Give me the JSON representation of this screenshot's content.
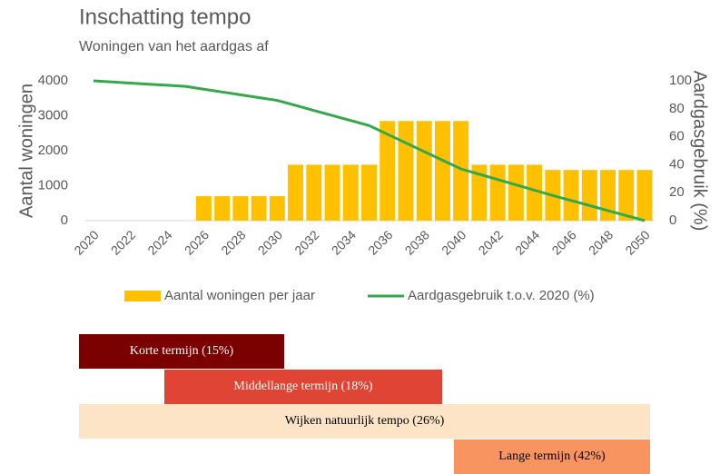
{
  "chart_data": {
    "type": "bar",
    "title": "Inschatting tempo",
    "subtitle": "Woningen van het aardgas af",
    "ylabel": "Aantal woningen",
    "y2label": "Aardgasgebruik (%)",
    "categories": [
      "2020",
      null,
      "2022",
      null,
      "2024",
      null,
      "2026",
      null,
      "2028",
      null,
      "2030",
      null,
      "2032",
      null,
      "2034",
      null,
      "2036",
      null,
      "2038",
      null,
      "2040",
      null,
      "2042",
      null,
      "2044",
      null,
      "2046",
      null,
      "2048",
      null,
      "2050"
    ],
    "series": [
      {
        "name": "Aantal woningen per jaar",
        "type": "bar",
        "color": "#ffc000",
        "values": [
          0,
          0,
          0,
          0,
          0,
          0,
          700,
          700,
          700,
          700,
          700,
          1600,
          1600,
          1600,
          1600,
          1600,
          2850,
          2850,
          2850,
          2850,
          2850,
          1600,
          1600,
          1600,
          1600,
          1450,
          1450,
          1450,
          1450,
          1450,
          1450
        ]
      },
      {
        "name": "Aardgasgebruik t.o.v. 2020 (%)",
        "type": "line",
        "axis": "y2",
        "color": "#34a84a",
        "values": [
          100,
          99.2,
          98.4,
          97.6,
          96.8,
          96,
          94,
          92,
          90,
          88,
          86,
          82.4,
          78.8,
          75.2,
          71.6,
          68,
          61.8,
          55.6,
          49.4,
          43.2,
          37,
          33.2,
          29.4,
          25.6,
          21.8,
          18,
          14.4,
          10.8,
          7.2,
          3.6,
          0
        ]
      }
    ],
    "ylim": [
      0,
      4000
    ],
    "yticks": [
      0,
      1000,
      2000,
      3000,
      4000
    ],
    "y2lim": [
      0,
      100
    ],
    "y2ticks": [
      0,
      20,
      40,
      60,
      80,
      100
    ],
    "legend": "bottom"
  },
  "bands": [
    {
      "label": "Korte termijn (15%)",
      "color": "#7b0000"
    },
    {
      "label": "Middellange termijn (18%)",
      "color": "#e04434"
    },
    {
      "label": "Wijken natuurlijk tempo (26%)",
      "color": "#fde4c6"
    },
    {
      "label": "Lange termijn (42%)",
      "color": "#f89460"
    }
  ]
}
